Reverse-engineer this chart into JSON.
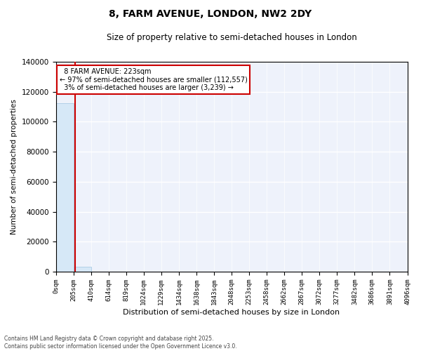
{
  "title": "8, FARM AVENUE, LONDON, NW2 2DY",
  "subtitle": "Size of property relative to semi-detached houses in London",
  "xlabel": "Distribution of semi-detached houses by size in London",
  "ylabel": "Number of semi-detached properties",
  "property_size": 223,
  "property_label": "8 FARM AVENUE: 223sqm",
  "pct_smaller": 97,
  "num_smaller": 112557,
  "pct_larger": 3,
  "num_larger": 3239,
  "bin_edges": [
    0,
    205,
    410,
    614,
    819,
    1024,
    1229,
    1434,
    1638,
    1843,
    2048,
    2253,
    2458,
    2662,
    2867,
    3072,
    3277,
    3482,
    3686,
    3891,
    4096
  ],
  "bin_counts": [
    112557,
    3239,
    100,
    30,
    15,
    8,
    5,
    3,
    2,
    2,
    1,
    1,
    1,
    1,
    1,
    1,
    1,
    1,
    1,
    1
  ],
  "bar_color": "#d6e8f7",
  "bar_edge_color": "#a0c4e0",
  "line_color": "#cc0000",
  "background_color": "#eef2fb",
  "footer_text": "Contains HM Land Registry data © Crown copyright and database right 2025.\nContains public sector information licensed under the Open Government Licence v3.0.",
  "tick_labels": [
    "0sqm",
    "205sqm",
    "410sqm",
    "614sqm",
    "819sqm",
    "1024sqm",
    "1229sqm",
    "1434sqm",
    "1638sqm",
    "1843sqm",
    "2048sqm",
    "2253sqm",
    "2458sqm",
    "2662sqm",
    "2867sqm",
    "3072sqm",
    "3277sqm",
    "3482sqm",
    "3686sqm",
    "3891sqm",
    "4096sqm"
  ],
  "ylim": [
    0,
    140000
  ],
  "yticks": [
    0,
    20000,
    40000,
    60000,
    80000,
    100000,
    120000,
    140000
  ]
}
